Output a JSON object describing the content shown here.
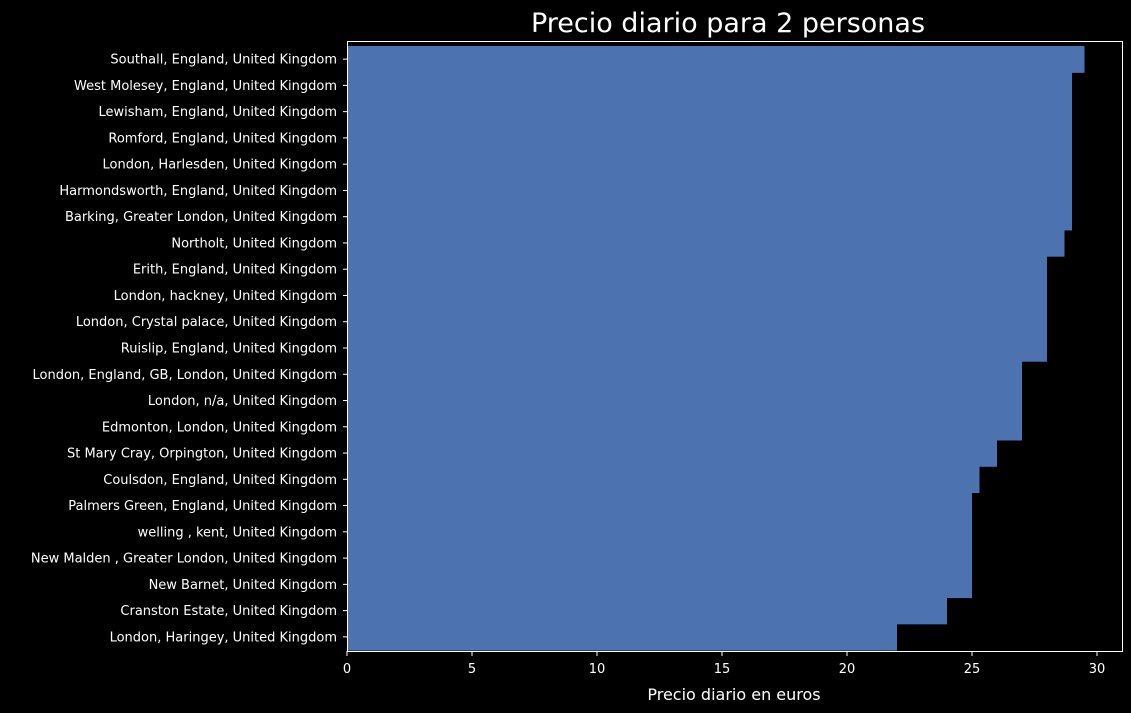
{
  "chart_data": {
    "type": "bar",
    "orientation": "horizontal",
    "title": "Precio diario para 2 personas",
    "xlabel": "Precio diario en euros",
    "ylabel": "",
    "xlim": [
      0,
      31
    ],
    "xticks": [
      0,
      5,
      10,
      15,
      20,
      25,
      30
    ],
    "grid": false,
    "bar_color": "#4c72b0",
    "background": "#000000",
    "text_color": "#ffffff",
    "categories": [
      "Southall, England, United Kingdom",
      "West Molesey, England, United Kingdom",
      "Lewisham, England, United Kingdom",
      "Romford, England, United Kingdom",
      "London, Harlesden, United Kingdom",
      "Harmondsworth, England, United Kingdom",
      "Barking, Greater London, United Kingdom",
      "Northolt, United Kingdom",
      "Erith, England, United Kingdom",
      "London, hackney, United Kingdom",
      "London, Crystal palace, United Kingdom",
      "Ruislip, England, United Kingdom",
      "London, England, GB, London, United Kingdom",
      "London, n/a, United Kingdom",
      "Edmonton, London, United Kingdom",
      "St Mary Cray, Orpington, United Kingdom",
      "Coulsdon, England, United Kingdom",
      "Palmers Green, England, United Kingdom",
      "welling , kent, United Kingdom",
      "New Malden , Greater London, United Kingdom",
      "New Barnet, United Kingdom",
      "Cranston Estate, United Kingdom",
      "London, Haringey, United Kingdom"
    ],
    "values": [
      29.5,
      29,
      29,
      29,
      29,
      29,
      29,
      28.7,
      28,
      28,
      28,
      28,
      27,
      27,
      27,
      26,
      25.3,
      25,
      25,
      25,
      25,
      24,
      22
    ]
  }
}
